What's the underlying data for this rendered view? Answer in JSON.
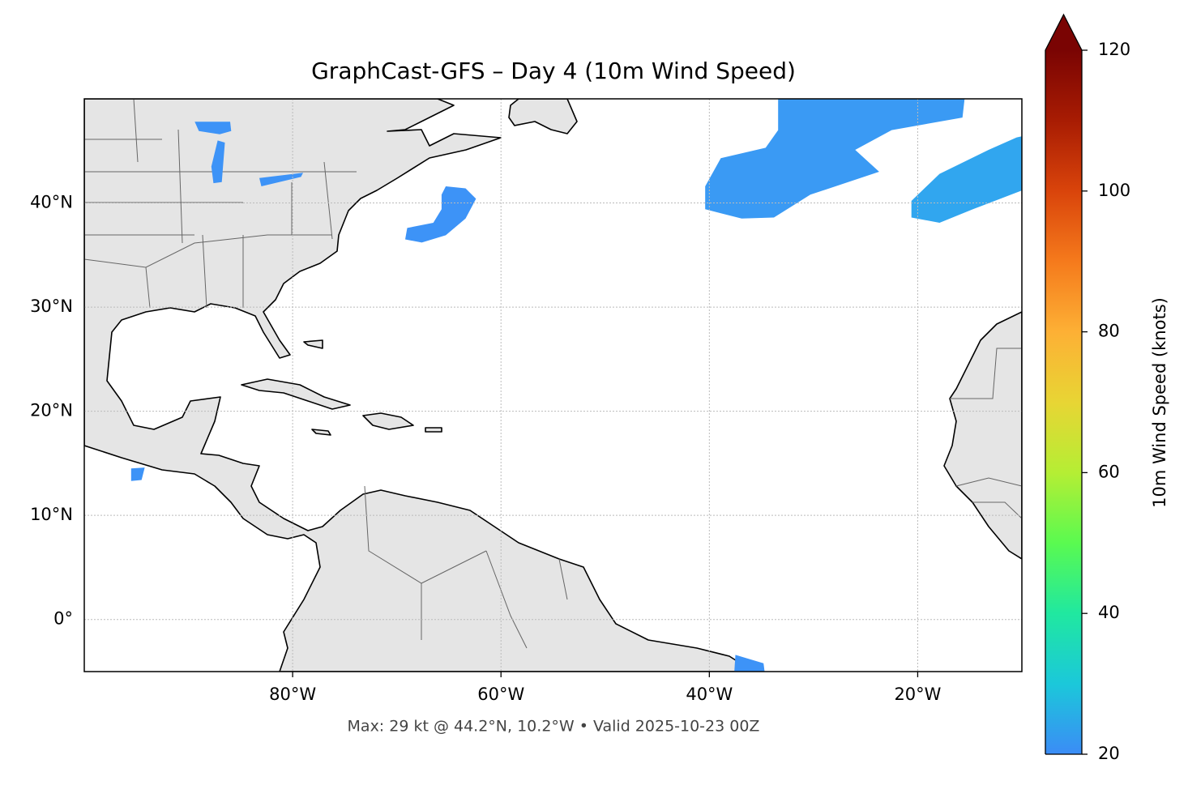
{
  "chart_data": {
    "type": "map",
    "title": "GraphCast-GFS – Day 4 (10m Wind Speed)",
    "footer": "Max: 29 kt @ 44.2°N, 10.2°W • Valid 2025-10-23 00Z",
    "xlim": [
      -100,
      -10
    ],
    "ylim": [
      -5,
      50
    ],
    "xticks": [
      {
        "value": -80,
        "label": "80°W"
      },
      {
        "value": -60,
        "label": "60°W"
      },
      {
        "value": -40,
        "label": "40°W"
      },
      {
        "value": -20,
        "label": "20°W"
      }
    ],
    "yticks": [
      {
        "value": 0,
        "label": "0°"
      },
      {
        "value": 10,
        "label": "10°N"
      },
      {
        "value": 20,
        "label": "20°N"
      },
      {
        "value": 30,
        "label": "30°N"
      },
      {
        "value": 40,
        "label": "40°N"
      }
    ],
    "grid": true,
    "areas": [
      {
        "lon": [
          -33.4,
          -15.5,
          -15.7,
          -22.5,
          -26.0,
          -23.7,
          -30.3,
          -33.8,
          -36.9,
          -40.4,
          -40.4,
          -38.9,
          -34.6,
          -33.4
        ],
        "lat": [
          50,
          50,
          48.2,
          47.0,
          45.1,
          43.0,
          40.8,
          38.6,
          38.5,
          39.4,
          41.6,
          44.3,
          45.3,
          47.0
        ],
        "value": 25,
        "color": "#3a9af4"
      },
      {
        "lon": [
          -10.5,
          -10,
          -10,
          -14.7,
          -17.9,
          -20.6,
          -20.6,
          -17.9,
          -13.2
        ],
        "lat": [
          46.3,
          46.4,
          41.2,
          39.4,
          38.1,
          38.6,
          40.2,
          42.8,
          45.1
        ],
        "value": 26,
        "color": "#31a6ef"
      },
      {
        "lon": [
          -65.3,
          -63.4,
          -62.4,
          -63.4,
          -65.3,
          -67.6,
          -69.2,
          -69.0,
          -66.5,
          -65.7,
          -65.7
        ],
        "lat": [
          41.6,
          41.4,
          40.4,
          38.5,
          36.9,
          36.2,
          36.5,
          37.6,
          38.1,
          39.4,
          40.8
        ],
        "value": 22,
        "color": "#3d93f7"
      },
      {
        "lon": [
          -89.4,
          -86.0,
          -85.9,
          -87.0,
          -89.0
        ],
        "lat": [
          47.8,
          47.8,
          46.9,
          46.6,
          46.9
        ],
        "value": 21,
        "color": "#3d93f7"
      },
      {
        "lon": [
          -87.2,
          -86.5,
          -86.8,
          -87.6,
          -87.8
        ],
        "lat": [
          46.0,
          45.8,
          42.0,
          41.9,
          43.5
        ],
        "value": 21,
        "color": "#3d93f7"
      },
      {
        "lon": [
          -83.2,
          -79.0,
          -79.2,
          -83.0
        ],
        "lat": [
          42.4,
          42.9,
          42.5,
          41.6
        ],
        "value": 21,
        "color": "#3d93f7"
      },
      {
        "lon": [
          -95.5,
          -94.2,
          -94.5,
          -95.5
        ],
        "lat": [
          14.5,
          14.6,
          13.4,
          13.3
        ],
        "value": 21,
        "color": "#3d93f7"
      },
      {
        "lon": [
          -37.5,
          -34.8,
          -34.7,
          -37.6
        ],
        "lat": [
          -3.4,
          -4.2,
          -5,
          -5
        ],
        "value": 21,
        "color": "#3d93f7"
      }
    ],
    "colorbar": {
      "label": "10m Wind Speed (knots)",
      "lim": [
        20,
        120
      ],
      "ticks": [
        20,
        40,
        60,
        80,
        100,
        120
      ],
      "colors": [
        "#3b8cf6",
        "#1bc8da",
        "#20e8a0",
        "#5afa50",
        "#b5ee34",
        "#e8d534",
        "#fdb035",
        "#f57a1c",
        "#d9440b",
        "#a81c03",
        "#7a0403"
      ],
      "extend": "max"
    }
  }
}
